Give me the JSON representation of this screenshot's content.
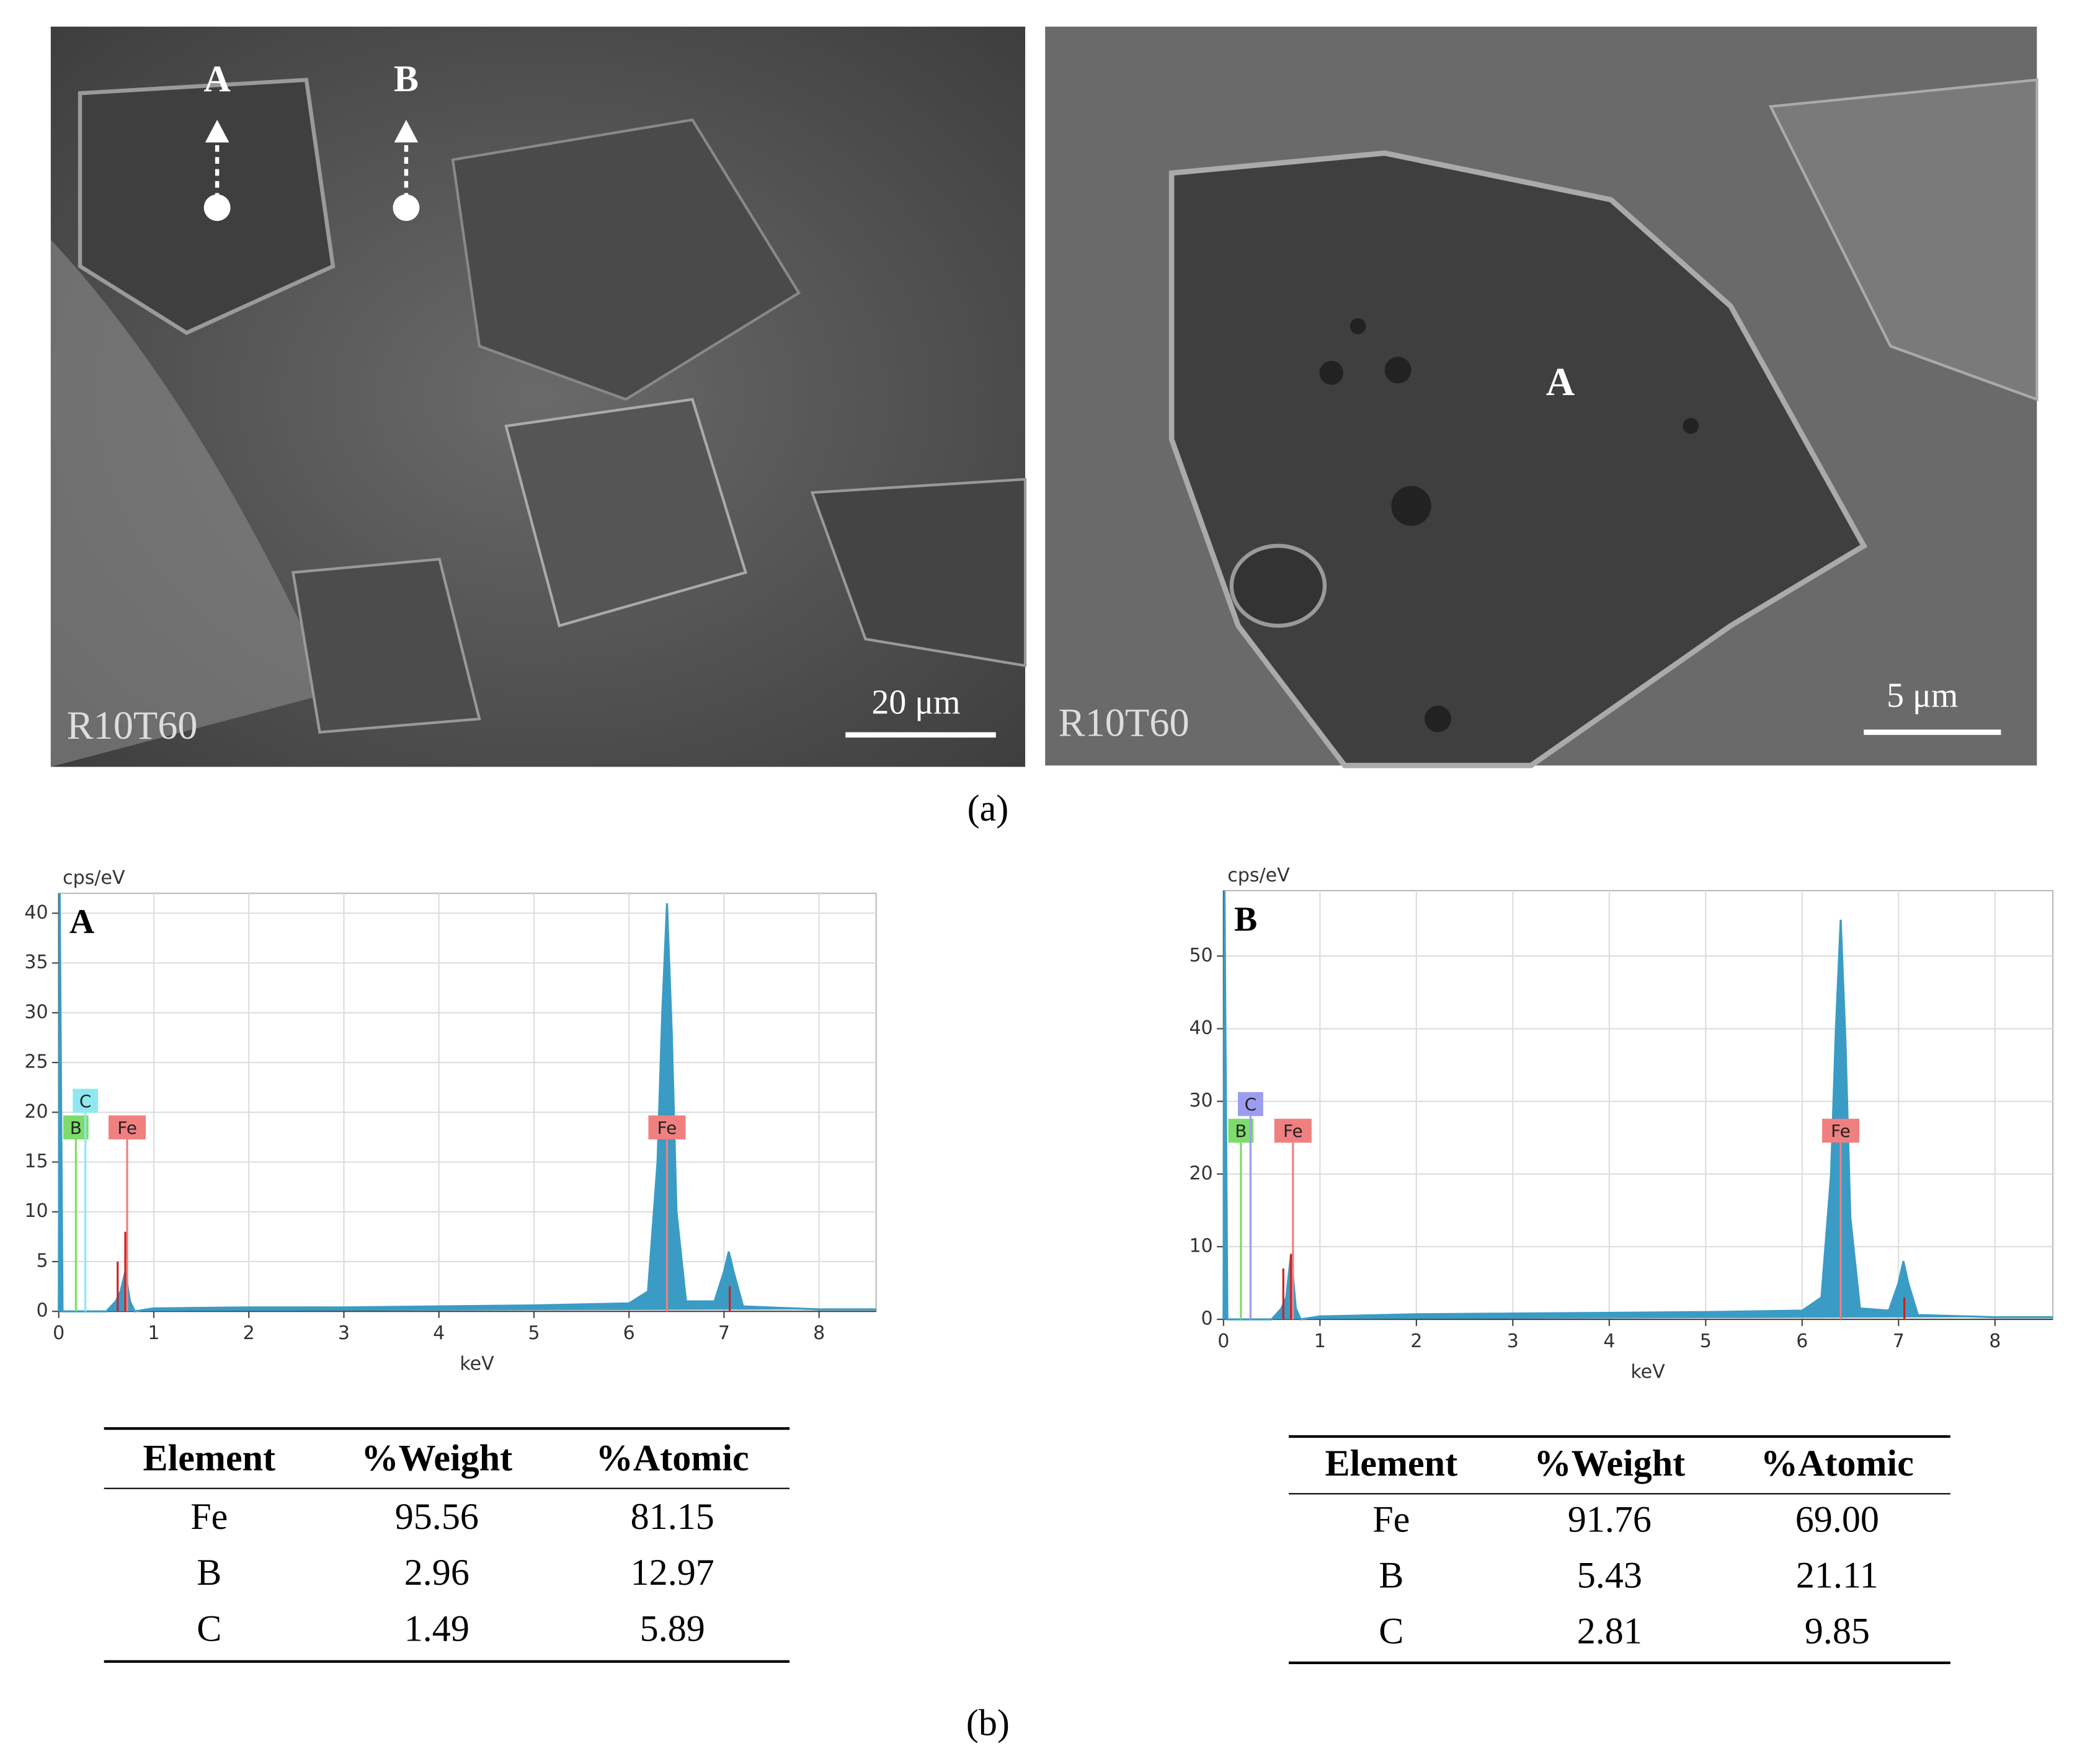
{
  "sem_images": [
    {
      "label": "R10T60",
      "scale_bar": "20 μm",
      "points": [
        "A",
        "B"
      ]
    },
    {
      "label": "R10T60",
      "scale_bar": "5 μm",
      "points": [
        "A"
      ]
    }
  ],
  "captions": [
    "(a)",
    "(b)"
  ],
  "chart_data": [
    {
      "type": "area",
      "panel": "A",
      "y_label": "cps/eV",
      "x_label": "keV",
      "color": "#3a9cc4",
      "grid": true,
      "xlim": [
        0,
        8.6
      ],
      "xticks": [
        0,
        1,
        2,
        3,
        4,
        5,
        6,
        7,
        8
      ],
      "ylim": [
        0,
        42
      ],
      "yticks": [
        0,
        5,
        10,
        15,
        20,
        25,
        30,
        35,
        40
      ],
      "x": [
        0,
        0.01,
        0.04,
        0.5,
        0.6,
        0.65,
        0.7,
        0.75,
        0.8,
        1,
        2,
        3,
        4,
        5,
        6,
        6.2,
        6.3,
        6.35,
        6.4,
        6.45,
        6.5,
        6.6,
        6.9,
        7.0,
        7.05,
        7.1,
        7.2,
        8,
        8.6
      ],
      "values": [
        0,
        42,
        0,
        0,
        1,
        2,
        4,
        1,
        0,
        0.3,
        0.4,
        0.4,
        0.5,
        0.6,
        0.8,
        2,
        15,
        30,
        41,
        28,
        10,
        1,
        1,
        4,
        6,
        4,
        0.5,
        0.2,
        0.2
      ],
      "markers": [
        {
          "label": "B",
          "x": 0.18,
          "color": "#7ddc6a"
        },
        {
          "label": "C",
          "x": 0.28,
          "color": "#8fe8f0"
        },
        {
          "label": "Fe",
          "x": 0.72,
          "color": "#f08080"
        },
        {
          "label": "Fe",
          "x": 6.4,
          "color": "#f08080"
        }
      ],
      "reference_lines": {
        "color": "#d02020",
        "x": [
          0.62,
          0.7,
          6.4,
          7.06
        ],
        "values": [
          5,
          8,
          8.5,
          2.5
        ]
      }
    },
    {
      "type": "area",
      "panel": "B",
      "y_label": "cps/eV",
      "x_label": "keV",
      "color": "#3a9cc4",
      "grid": true,
      "xlim": [
        0,
        8.6
      ],
      "xticks": [
        0,
        1,
        2,
        3,
        4,
        5,
        6,
        7,
        8
      ],
      "ylim": [
        0,
        59
      ],
      "yticks": [
        0,
        10,
        20,
        30,
        40,
        50
      ],
      "x": [
        0,
        0.01,
        0.04,
        0.5,
        0.6,
        0.65,
        0.7,
        0.75,
        0.8,
        1,
        2,
        3,
        4,
        5,
        6,
        6.2,
        6.3,
        6.35,
        6.4,
        6.45,
        6.5,
        6.6,
        6.9,
        7.0,
        7.05,
        7.1,
        7.2,
        8,
        8.6
      ],
      "values": [
        0,
        59,
        0,
        0,
        1.5,
        3,
        9,
        1.5,
        0,
        0.4,
        0.7,
        0.8,
        0.9,
        1,
        1.2,
        3,
        20,
        40,
        55,
        38,
        14,
        1.5,
        1.2,
        5,
        8,
        5,
        0.6,
        0.3,
        0.3
      ],
      "markers": [
        {
          "label": "B",
          "x": 0.18,
          "color": "#7ddc6a"
        },
        {
          "label": "C",
          "x": 0.28,
          "color": "#9c9cf0"
        },
        {
          "label": "Fe",
          "x": 0.72,
          "color": "#f08080"
        },
        {
          "label": "Fe",
          "x": 6.4,
          "color": "#f08080"
        }
      ],
      "reference_lines": {
        "color": "#d02020",
        "x": [
          0.62,
          0.7,
          6.4,
          7.06
        ],
        "values": [
          7,
          9,
          12,
          3
        ]
      }
    }
  ],
  "tables": [
    {
      "headers": [
        "Element",
        "%Weight",
        "%Atomic"
      ],
      "rows": [
        [
          "Fe",
          "95.56",
          "81.15"
        ],
        [
          "B",
          "2.96",
          "12.97"
        ],
        [
          "C",
          "1.49",
          "5.89"
        ]
      ]
    },
    {
      "headers": [
        "Element",
        "%Weight",
        "%Atomic"
      ],
      "rows": [
        [
          "Fe",
          "91.76",
          "69.00"
        ],
        [
          "B",
          "5.43",
          "21.11"
        ],
        [
          "C",
          "2.81",
          "9.85"
        ]
      ]
    }
  ]
}
